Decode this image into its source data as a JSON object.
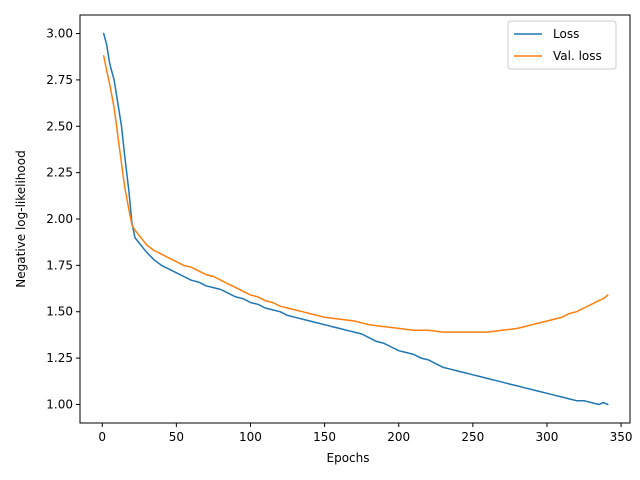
{
  "chart_data": {
    "type": "line",
    "xlabel": "Epochs",
    "ylabel": "Negative log-likelihood",
    "xlim": [
      -15,
      356
    ],
    "ylim": [
      0.9,
      3.1
    ],
    "xticks": [
      0,
      50,
      100,
      150,
      200,
      250,
      300,
      350
    ],
    "yticks": [
      1.0,
      1.25,
      1.5,
      1.75,
      2.0,
      2.25,
      2.5,
      2.75,
      3.0
    ],
    "ytick_labels": [
      "1.00",
      "1.25",
      "1.50",
      "1.75",
      "2.00",
      "2.25",
      "2.50",
      "2.75",
      "3.00"
    ],
    "grid": false,
    "legend_position": "top-right",
    "series": [
      {
        "name": "Loss",
        "color": "#1f77b4",
        "x": [
          1,
          3,
          5,
          8,
          10,
          13,
          15,
          18,
          20,
          22,
          25,
          28,
          30,
          35,
          40,
          45,
          50,
          55,
          60,
          65,
          70,
          75,
          80,
          85,
          90,
          95,
          100,
          105,
          110,
          115,
          120,
          125,
          130,
          135,
          140,
          145,
          150,
          155,
          160,
          165,
          170,
          175,
          180,
          185,
          190,
          195,
          200,
          205,
          210,
          215,
          220,
          225,
          230,
          235,
          240,
          245,
          250,
          255,
          260,
          265,
          270,
          275,
          280,
          285,
          290,
          295,
          300,
          305,
          310,
          315,
          320,
          325,
          330,
          335,
          338,
          341
        ],
        "y": [
          3.0,
          2.94,
          2.84,
          2.75,
          2.65,
          2.5,
          2.35,
          2.15,
          1.98,
          1.9,
          1.87,
          1.84,
          1.82,
          1.78,
          1.75,
          1.73,
          1.71,
          1.69,
          1.67,
          1.66,
          1.64,
          1.63,
          1.62,
          1.6,
          1.58,
          1.57,
          1.55,
          1.54,
          1.52,
          1.51,
          1.5,
          1.48,
          1.47,
          1.46,
          1.45,
          1.44,
          1.43,
          1.42,
          1.41,
          1.4,
          1.39,
          1.38,
          1.36,
          1.34,
          1.33,
          1.31,
          1.29,
          1.28,
          1.27,
          1.25,
          1.24,
          1.22,
          1.2,
          1.19,
          1.18,
          1.17,
          1.16,
          1.15,
          1.14,
          1.13,
          1.12,
          1.11,
          1.1,
          1.09,
          1.08,
          1.07,
          1.06,
          1.05,
          1.04,
          1.03,
          1.02,
          1.02,
          1.01,
          1.0,
          1.01,
          1.0
        ]
      },
      {
        "name": "Val. loss",
        "color": "#ff7f0e",
        "x": [
          1,
          3,
          5,
          8,
          10,
          13,
          15,
          18,
          20,
          22,
          25,
          30,
          35,
          40,
          45,
          50,
          55,
          60,
          65,
          70,
          75,
          80,
          85,
          90,
          95,
          100,
          105,
          110,
          115,
          120,
          125,
          130,
          135,
          140,
          145,
          150,
          160,
          170,
          180,
          190,
          200,
          210,
          220,
          230,
          240,
          250,
          260,
          270,
          280,
          285,
          290,
          295,
          300,
          305,
          310,
          315,
          320,
          325,
          330,
          335,
          338,
          341
        ],
        "y": [
          2.88,
          2.8,
          2.73,
          2.6,
          2.48,
          2.3,
          2.18,
          2.05,
          1.97,
          1.94,
          1.91,
          1.86,
          1.83,
          1.81,
          1.79,
          1.77,
          1.75,
          1.74,
          1.72,
          1.7,
          1.69,
          1.67,
          1.65,
          1.63,
          1.61,
          1.59,
          1.58,
          1.56,
          1.55,
          1.53,
          1.52,
          1.51,
          1.5,
          1.49,
          1.48,
          1.47,
          1.46,
          1.45,
          1.43,
          1.42,
          1.41,
          1.4,
          1.4,
          1.39,
          1.39,
          1.39,
          1.39,
          1.4,
          1.41,
          1.42,
          1.43,
          1.44,
          1.45,
          1.46,
          1.47,
          1.49,
          1.5,
          1.52,
          1.54,
          1.56,
          1.57,
          1.59
        ]
      }
    ]
  }
}
